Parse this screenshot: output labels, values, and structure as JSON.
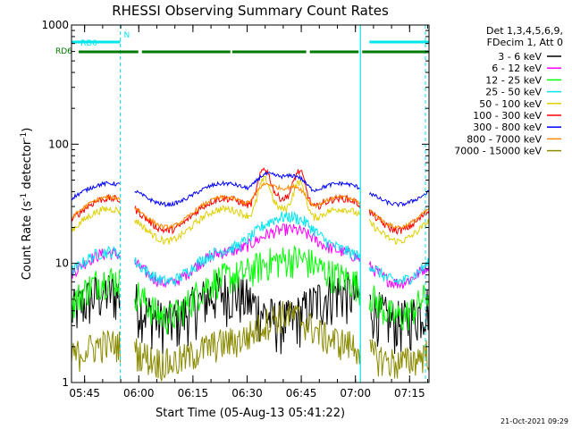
{
  "chart_data": {
    "type": "line",
    "title": "RHESSI Observing Summary Count Rates",
    "ylabel_main": "Count Rate (s",
    "ylabel_sup1": "-1",
    "ylabel_mid": " detector",
    "ylabel_sup2": "-1",
    "ylabel_end": ")",
    "xlabel": "Start Time (05-Aug-13 05:41:22)",
    "yscale": "log",
    "ylim": [
      1,
      1000
    ],
    "xlim_minutes": [
      0,
      99
    ],
    "x_tick_minutes": [
      3.63,
      18.63,
      33.63,
      48.63,
      63.63,
      78.63,
      93.63
    ],
    "x_tick_labels": [
      "05:45",
      "06:00",
      "06:15",
      "06:30",
      "06:45",
      "07:00",
      "07:15"
    ],
    "y_ticks": [
      1,
      10,
      100,
      1000
    ],
    "y_tick_labels": [
      "1",
      "10",
      "100",
      "1000"
    ],
    "legend_header": [
      "Det 1,3,4,5,6,9,",
      "FDecim 1, Att 0"
    ],
    "timestamp": "21-Oct-2021 09:29",
    "flags": [
      {
        "label": "N",
        "color": "#00e5ee",
        "segments": []
      },
      {
        "label": "RD0",
        "color": "#00e5ee",
        "segments": [
          [
            0,
            13.5
          ],
          [
            82.5,
            99
          ]
        ]
      },
      {
        "label": "RD6",
        "color": "#007a00",
        "segments": [
          [
            2,
            18.5
          ],
          [
            19.5,
            44
          ],
          [
            44.5,
            65
          ],
          [
            66,
            79.5
          ],
          [
            80.5,
            99
          ]
        ]
      }
    ],
    "vlines_solid": [
      80
    ],
    "vlines_dashed": [
      13.5,
      98
    ],
    "vline_color": "#00e5ee",
    "gaps": [
      [
        13.5,
        17.5
      ],
      [
        80,
        82.5
      ]
    ],
    "series": [
      {
        "name": "3 - 6 keV",
        "color": "#000000",
        "base": 4.5,
        "amp": 0.28,
        "flare": 0.0,
        "noise": 0.5,
        "flare_shape": "broad"
      },
      {
        "name": "6 - 12 keV",
        "color": "#ff00ff",
        "base": 9.5,
        "amp": 0.28,
        "flare": 0.45,
        "noise": 0.12,
        "flare_shape": "broad"
      },
      {
        "name": "12 - 25 keV",
        "color": "#00ff00",
        "base": 5.5,
        "amp": 0.35,
        "flare": 0.5,
        "noise": 0.32,
        "flare_shape": "broad"
      },
      {
        "name": "25 - 50 keV",
        "color": "#00e5ee",
        "base": 9.8,
        "amp": 0.28,
        "flare": 0.62,
        "noise": 0.12,
        "flare_shape": "broad"
      },
      {
        "name": "50 - 100 keV",
        "color": "#e0d000",
        "base": 22,
        "amp": 0.3,
        "flare": 0.35,
        "noise": 0.07,
        "flare_shape": "double"
      },
      {
        "name": "100 - 300 keV",
        "color": "#ff0000",
        "base": 27,
        "amp": 0.3,
        "flare": 0.35,
        "noise": 0.07,
        "flare_shape": "double"
      },
      {
        "name": "300 - 800 keV",
        "color": "#0000ff",
        "base": 39,
        "amp": 0.2,
        "flare": 0.18,
        "noise": 0.04,
        "flare_shape": "plateau"
      },
      {
        "name": "800 - 7000 keV",
        "color": "#ff8800",
        "base": 28,
        "amp": 0.28,
        "flare": 0.28,
        "noise": 0.04,
        "flare_shape": "plateau"
      },
      {
        "name": "7000 - 15000 keV",
        "color": "#8b8b00",
        "base": 1.8,
        "amp": 0.18,
        "flare": 0.38,
        "noise": 0.32,
        "flare_shape": "broad"
      }
    ]
  }
}
